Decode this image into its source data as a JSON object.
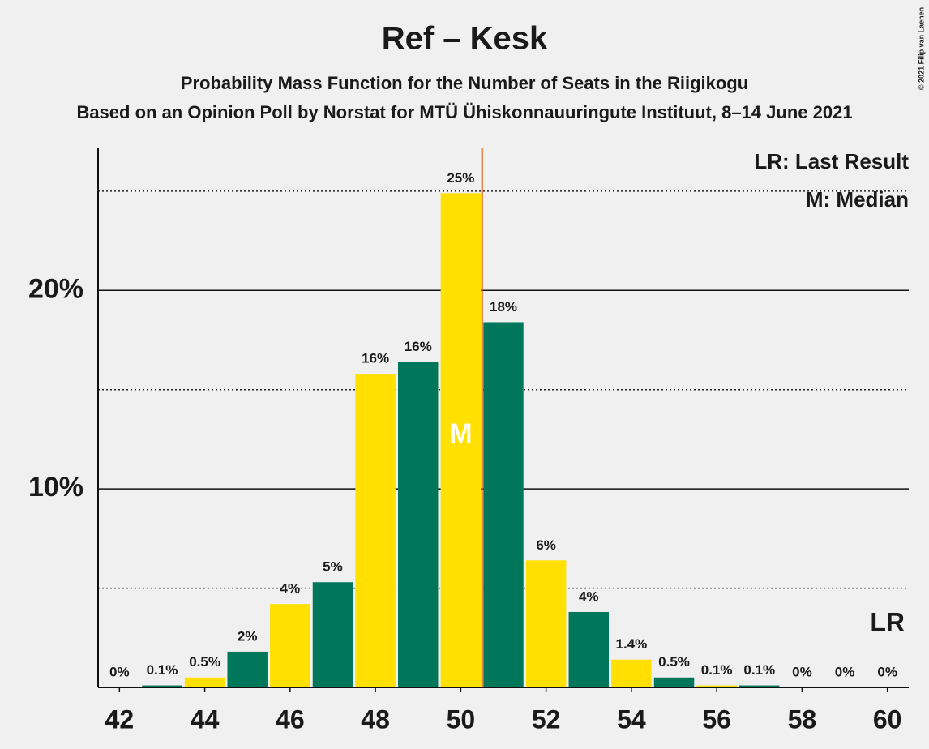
{
  "chart_data": {
    "type": "bar",
    "title": "Ref – Kesk",
    "subtitle": "Probability Mass Function for the Number of Seats in the Riigikogu",
    "caption": "Based on an Opinion Poll by Norstat for MTÜ Ühiskonnauuringute Instituut, 8–14 June 2021",
    "copyright": "© 2021 Filip van Laenen",
    "x": [
      42,
      43,
      44,
      45,
      46,
      47,
      48,
      49,
      50,
      51,
      52,
      53,
      54,
      55,
      56,
      57,
      58,
      59,
      60
    ],
    "values": [
      0,
      0.1,
      0.5,
      1.8,
      4.2,
      5.3,
      15.8,
      16.4,
      24.9,
      18.4,
      6.4,
      3.8,
      1.4,
      0.5,
      0.1,
      0.1,
      0,
      0,
      0
    ],
    "value_labels": [
      "0%",
      "0.1%",
      "0.5%",
      "2%",
      "4%",
      "5%",
      "16%",
      "16%",
      "25%",
      "18%",
      "6%",
      "4%",
      "1.4%",
      "0.5%",
      "0.1%",
      "0.1%",
      "0%",
      "0%",
      "0%"
    ],
    "bar_colors": [
      "#FFE000",
      "#00775A"
    ],
    "xlim": [
      41.5,
      60.5
    ],
    "xticks": [
      42,
      44,
      46,
      48,
      50,
      52,
      54,
      56,
      58,
      60
    ],
    "ylim": [
      0,
      27.2
    ],
    "yticks": [
      {
        "value": 10,
        "label": "10%"
      },
      {
        "value": 20,
        "label": "20%"
      }
    ],
    "minor_yticks": [
      5,
      15,
      25
    ],
    "legend": [
      "LR: Last Result",
      "M: Median"
    ],
    "median": {
      "x": 50,
      "label": "M"
    },
    "last_result": {
      "x": 60,
      "label": "LR"
    },
    "median_line_color": "#E05A00"
  }
}
